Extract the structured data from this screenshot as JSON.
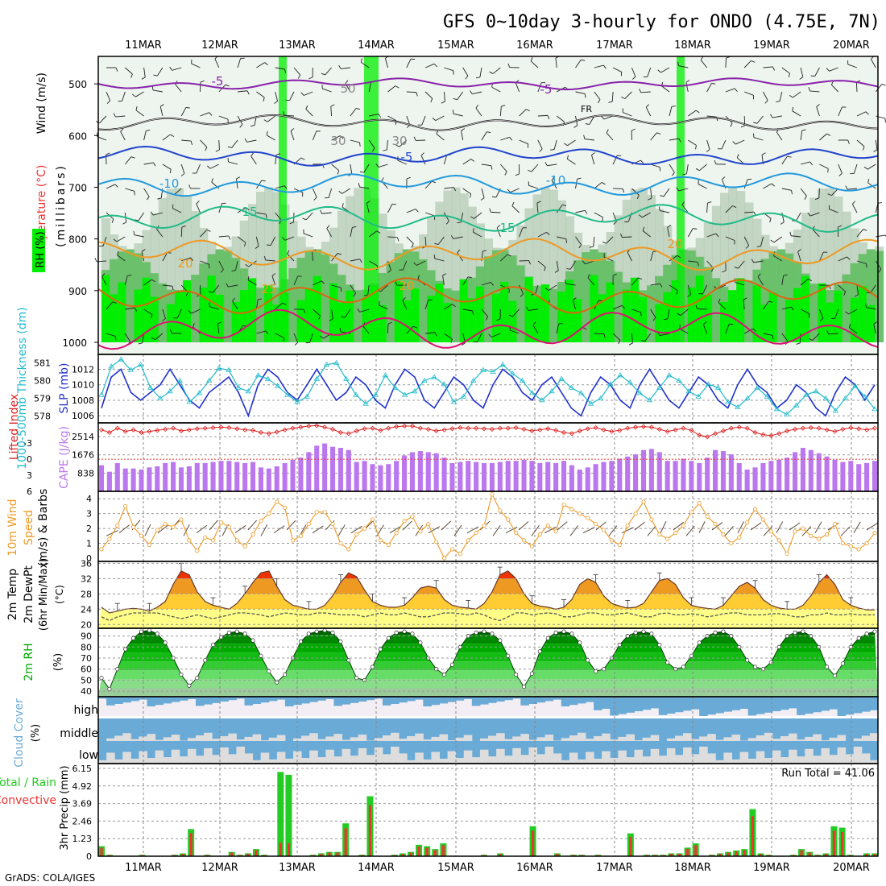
{
  "title": "GFS 0~10day 3-hourly for ONDO (4.75E, 7N)",
  "credit": "GrADS: COLA/IGES",
  "chart_data": {
    "type": "meteogram",
    "dates": [
      "11MAR",
      "12MAR",
      "13MAR",
      "14MAR",
      "15MAR",
      "16MAR",
      "17MAR",
      "18MAR",
      "19MAR",
      "20MAR"
    ],
    "colors": {
      "rh_green": "#00ee00",
      "rh_dark": "#55bb55",
      "cape": "#bb77ee",
      "lifted_index": "#dd2222",
      "slp": "#2233cc",
      "thickness": "#22bbcc",
      "wind10m": "#ee9922",
      "temp_hot": "#ee3300",
      "temp_warm": "#ee9922",
      "temp_mild": "#ffcc33",
      "temp_cool": "#ffff88",
      "dewpt": "#555555",
      "rh2m": "#00aa00",
      "cloud": "#6aaad6",
      "cloud_clear": "#dddddd",
      "precip_total": "#22cc22",
      "precip_conv": "#ee3333"
    },
    "panels": [
      {
        "id": "upper_air",
        "ylabel_lines": [
          "Wind (m/s)",
          "Temperature (°C)",
          "RH (%)"
        ],
        "yunit": "(millibars)",
        "yticks": [
          500,
          600,
          700,
          800,
          900,
          1000
        ],
        "ylim": [
          450,
          1000
        ],
        "contour_labels": [
          "-5",
          "-5",
          "FR",
          "-5",
          "-10",
          "-10",
          "15",
          "15",
          "20",
          "20",
          "25",
          "30",
          "30",
          "50",
          "20"
        ],
        "isotherms": [
          {
            "label": "-5",
            "p": 500,
            "color": "#8822aa"
          },
          {
            "label": "FR",
            "p": 575,
            "color": "#111111"
          },
          {
            "label": "-5",
            "p": 640,
            "color": "#2244cc"
          },
          {
            "label": "-10",
            "p": 695,
            "color": "#2299dd"
          },
          {
            "label": "15",
            "p": 760,
            "color": "#22bb88"
          },
          {
            "label": "20",
            "p": 830,
            "color": "#ee9922"
          },
          {
            "label": "25",
            "p": 910,
            "color": "#dd6611"
          },
          {
            "label": "",
            "p": 975,
            "color": "#dd1177"
          }
        ]
      },
      {
        "id": "slp_thickness",
        "left_label": "1000-500mb Thickness (dm)",
        "right_label": "SLP (mb)",
        "left_ticks": [
          578,
          579,
          580,
          581
        ],
        "right_ticks": [
          1006,
          1008,
          1010,
          1012
        ],
        "slp_series": [
          1007,
          1011,
          1012,
          1009,
          1008,
          1009,
          1010,
          1012,
          1010,
          1008,
          1007,
          1009,
          1010,
          1011,
          1009,
          1006,
          1010,
          1012,
          1011,
          1009,
          1008,
          1010,
          1012,
          1010,
          1008,
          1009,
          1011,
          1010,
          1008,
          1007,
          1010,
          1012,
          1011,
          1008,
          1007,
          1009,
          1011,
          1010,
          1008,
          1007,
          1010,
          1012,
          1011,
          1009,
          1008,
          1010,
          1011,
          1009,
          1007,
          1006,
          1009,
          1011,
          1010,
          1008,
          1007,
          1010,
          1012,
          1010,
          1008,
          1007,
          1009,
          1011,
          1010,
          1008,
          1007,
          1010,
          1012,
          1010,
          1009,
          1007,
          1008,
          1010,
          1009,
          1007,
          1006,
          1009,
          1011,
          1010,
          1008,
          1010
        ],
        "thickness_series": [
          579.2,
          580.8,
          581.2,
          580.6,
          580.9,
          579.6,
          579.0,
          579.4,
          580.0,
          578.8,
          579.3,
          580.0,
          580.7,
          580.6,
          579.6,
          579.4,
          580.3,
          580.1,
          579.7,
          579.2,
          578.8,
          579.1,
          580.1,
          580.9,
          581.0,
          580.1,
          579.2,
          578.7,
          579.2,
          580.3,
          579.6,
          579.2,
          579.4,
          580.0,
          580.2,
          579.8,
          578.8,
          579.1,
          580.0,
          580.6,
          580.5,
          580.9,
          580.4,
          580.0,
          579.3,
          578.9,
          579.4,
          580.1,
          579.6,
          579.3,
          578.7,
          579.0,
          579.8,
          580.3,
          579.9,
          579.3,
          578.9,
          579.6,
          580.3,
          580.0,
          579.4,
          579.1,
          579.8,
          579.6,
          578.8,
          578.5,
          579.0,
          579.6,
          579.1,
          578.4,
          578.1,
          578.6,
          579.2,
          579.4,
          579.0,
          578.3,
          579.0,
          579.7,
          579.1,
          578.4
        ]
      },
      {
        "id": "cape_li",
        "left_label": "Lifted Index",
        "right_label": "CAPE (J/kg)",
        "left_ticks": [
          -3,
          0,
          3,
          6
        ],
        "right_ticks": [
          838,
          1676,
          2514
        ],
        "cape": [
          1200,
          900,
          1300,
          1050,
          1050,
          1000,
          1100,
          1150,
          1300,
          1350,
          1100,
          1150,
          1300,
          1300,
          1350,
          1400,
          1400,
          1350,
          1300,
          1350,
          1100,
          1050,
          1150,
          1300,
          1450,
          1550,
          1800,
          2100,
          2200,
          2050,
          2000,
          1900,
          1350,
          1400,
          1250,
          1200,
          1250,
          1400,
          1650,
          1800,
          1850,
          1800,
          1750,
          1550,
          1300,
          1350,
          1400,
          1350,
          1300,
          1300,
          1350,
          1400,
          1400,
          1450,
          1400,
          1300,
          1350,
          1300,
          1400,
          1200,
          1000,
          1100,
          1250,
          1350,
          1400,
          1500,
          1600,
          1700,
          1900,
          1950,
          1800,
          1400,
          1400,
          1500,
          1400,
          1300,
          1550,
          1900,
          1850,
          1700,
          1300,
          1000,
          1100,
          1300,
          1400,
          1450,
          1550,
          1800,
          2000,
          1900,
          1750,
          1600,
          1450,
          1350,
          1400,
          1250,
          1300,
          1400
        ],
        "lifted_index": [
          -5.5,
          -5.0,
          -5.8,
          -5.2,
          -5.5,
          -5.0,
          -5.2,
          -5.4,
          -5.6,
          -5.8,
          -5.3,
          -5.5,
          -5.7,
          -5.8,
          -5.9,
          -6.0,
          -5.9,
          -5.7,
          -5.5,
          -5.4,
          -5.0,
          -4.8,
          -5.1,
          -5.5,
          -5.8,
          -6.0,
          -6.2,
          -6.3,
          -6.0,
          -5.6,
          -5.0,
          -4.8,
          -5.3,
          -5.7,
          -5.8,
          -5.4,
          -5.8,
          -6.1,
          -6.2,
          -6.2,
          -5.8,
          -5.6,
          -5.3,
          -5.5,
          -5.7,
          -5.9,
          -5.8,
          -5.8,
          -5.7,
          -5.6,
          -5.8,
          -5.8,
          -5.9,
          -5.6,
          -5.3,
          -5.5,
          -5.7,
          -5.4,
          -5.0,
          -4.8,
          -5.3,
          -5.7,
          -5.9,
          -5.5,
          -5.2,
          -5.4,
          -5.8,
          -6.0,
          -6.1,
          -6.0,
          -5.6,
          -5.2,
          -5.5,
          -5.8,
          -5.4,
          -4.5,
          -4.2,
          -4.8,
          -5.3,
          -5.8,
          -6.0,
          -5.8,
          -5.0,
          -4.6,
          -4.4,
          -4.8,
          -5.3,
          -5.6,
          -5.8,
          -5.9,
          -5.8,
          -5.5,
          -5.2,
          -5.6,
          -5.9,
          -5.7,
          -5.5,
          -5.8
        ]
      },
      {
        "id": "wind10m",
        "label_lines": [
          "10m Wind",
          "Speed",
          "(m/s) & Barbs"
        ],
        "yticks": [
          0,
          1,
          2,
          3,
          4
        ],
        "ylim": [
          0,
          4.5
        ],
        "speed": [
          0.6,
          1.3,
          2.2,
          3.5,
          2.1,
          1.5,
          0.9,
          1.9,
          2.3,
          2.1,
          2.6,
          1.2,
          0.5,
          1.4,
          1.2,
          2.4,
          2.1,
          1.2,
          0.8,
          1.6,
          2.5,
          3.0,
          3.8,
          3.4,
          1.2,
          1.5,
          2.3,
          3.1,
          3.1,
          2.3,
          1.0,
          0.6,
          1.6,
          2.0,
          2.6,
          1.2,
          0.9,
          1.7,
          2.5,
          2.8,
          1.8,
          2.3,
          1.1,
          0.0,
          0.6,
          0.3,
          1.2,
          1.7,
          2.2,
          4.3,
          3.2,
          2.6,
          1.7,
          1.2,
          0.8,
          1.6,
          2.2,
          1.8,
          3.6,
          3.3,
          3.0,
          2.7,
          2.3,
          1.9,
          1.2,
          0.9,
          2.2,
          3.0,
          3.8,
          2.6,
          1.6,
          1.3,
          1.7,
          2.2,
          3.1,
          3.7,
          2.8,
          2.3,
          1.6,
          1.0,
          1.4,
          2.4,
          3.3,
          2.6,
          1.8,
          1.2,
          0.3,
          1.8,
          2.0,
          1.5,
          1.3,
          1.6,
          2.3,
          1.0,
          0.8,
          0.6,
          1.0,
          1.7
        ]
      },
      {
        "id": "temp2m",
        "label_lines": [
          "2m Temp",
          "2m DewPt",
          "(6hr Min/Max)"
        ],
        "yunit": "(°C)",
        "yticks": [
          20,
          24,
          28,
          32,
          36
        ],
        "ylim": [
          19,
          36.5
        ],
        "temp": [
          24.5,
          23.0,
          23.5,
          24.0,
          24.2,
          24.0,
          23.5,
          24.5,
          26.0,
          30.5,
          34.0,
          33.0,
          28.5,
          26.0,
          25.0,
          24.5,
          24.0,
          25.5,
          28.0,
          31.0,
          33.5,
          34.0,
          30.0,
          26.5,
          25.0,
          24.5,
          24.0,
          24.0,
          25.0,
          27.5,
          31.0,
          33.5,
          32.5,
          29.0,
          26.0,
          25.0,
          24.5,
          24.5,
          25.0,
          27.0,
          29.5,
          30.0,
          29.5,
          26.5,
          25.0,
          24.5,
          24.3,
          24.0,
          25.5,
          28.5,
          33.0,
          34.0,
          32.0,
          28.0,
          25.5,
          24.8,
          24.5,
          24.0,
          24.5,
          26.5,
          30.5,
          32.0,
          31.0,
          27.5,
          25.5,
          24.8,
          24.3,
          24.5,
          25.5,
          28.5,
          31.5,
          32.0,
          30.5,
          27.0,
          25.0,
          24.5,
          24.2,
          24.0,
          25.0,
          27.5,
          30.0,
          31.0,
          29.5,
          26.5,
          25.0,
          24.3,
          24.0,
          24.0,
          25.0,
          27.5,
          31.0,
          33.0,
          30.5,
          26.5,
          25.0,
          24.3,
          23.8,
          23.8
        ],
        "dewpt": [
          22.0,
          21.0,
          22.0,
          22.5,
          23.0,
          23.0,
          23.0,
          23.0,
          22.5,
          22.0,
          21.5,
          22.0,
          22.5,
          22.0,
          21.5,
          22.0,
          22.5,
          23.0,
          23.0,
          22.8,
          22.5,
          22.0,
          22.5,
          23.0,
          22.8,
          22.5,
          22.5,
          23.0,
          23.0,
          22.8,
          22.5,
          22.5,
          22.5,
          22.0,
          22.5,
          23.0,
          22.5,
          22.5,
          23.0,
          22.5,
          22.0,
          22.0,
          22.5,
          23.0,
          23.0,
          22.8,
          22.5,
          23.0,
          22.5,
          21.5,
          21.0,
          22.0,
          23.0,
          23.0,
          22.5,
          22.8,
          23.0,
          22.8,
          22.0,
          22.0,
          22.5,
          23.0,
          23.0,
          22.5,
          22.5,
          22.8,
          23.0,
          22.5,
          22.0,
          22.0,
          22.8,
          23.0,
          22.5,
          22.5,
          22.8,
          22.5,
          22.0,
          22.3,
          22.8,
          23.0,
          23.0,
          22.5,
          22.5,
          22.5,
          22.8,
          22.8,
          22.5,
          22.0,
          22.0,
          22.5,
          22.5,
          23.0,
          22.5,
          22.5,
          22.8,
          22.5,
          22.5,
          22.5
        ]
      },
      {
        "id": "rh2m",
        "label_lines": [
          "2m RH"
        ],
        "yunit": "(%)",
        "yticks": [
          40,
          50,
          60,
          70,
          80,
          90
        ],
        "ylim": [
          35,
          97
        ],
        "rh": [
          52,
          42,
          60,
          78,
          88,
          94,
          95,
          92,
          84,
          70,
          55,
          45,
          52,
          68,
          82,
          89,
          93,
          94,
          92,
          86,
          72,
          58,
          48,
          55,
          70,
          85,
          92,
          94,
          95,
          93,
          85,
          68,
          52,
          50,
          62,
          78,
          88,
          93,
          94,
          92,
          84,
          70,
          60,
          55,
          64,
          80,
          90,
          93,
          94,
          92,
          86,
          72,
          55,
          44,
          56,
          76,
          88,
          93,
          94,
          92,
          84,
          68,
          58,
          60,
          70,
          82,
          90,
          93,
          94,
          92,
          82,
          66,
          60,
          62,
          72,
          84,
          90,
          93,
          94,
          90,
          80,
          68,
          62,
          60,
          66,
          80,
          90,
          93,
          94,
          90,
          80,
          62,
          54,
          65,
          80,
          88,
          92,
          94
        ]
      },
      {
        "id": "cloud",
        "label_lines": [
          "Cloud Cover"
        ],
        "yunit": "(%)",
        "level_labels": [
          "high",
          "middle",
          "low"
        ]
      },
      {
        "id": "precip",
        "label_lines": [
          "Total / Rain",
          "Convective"
        ],
        "ylabel": "3hr Precip (mm)",
        "yticks": [
          0,
          1.23,
          2.46,
          3.69,
          4.92,
          6.15
        ],
        "ylim": [
          0,
          6.15
        ],
        "run_total_label": "Run Total = 41.06",
        "total": [
          0.7,
          0.1,
          0.0,
          0.0,
          0.0,
          0.1,
          0.0,
          0.0,
          0.0,
          0.1,
          0.2,
          1.9,
          0.0,
          0.1,
          0.0,
          0.0,
          0.3,
          0.1,
          0.2,
          0.5,
          0.1,
          0.0,
          5.9,
          5.7,
          0.0,
          0.0,
          0.1,
          0.2,
          0.3,
          0.3,
          2.3,
          0.0,
          0.1,
          4.2,
          0.0,
          0.0,
          0.1,
          0.2,
          0.3,
          0.8,
          0.7,
          0.5,
          0.9,
          0.0,
          0.0,
          0.0,
          0.0,
          0.1,
          0.0,
          0.2,
          0.0,
          0.0,
          0.0,
          2.1,
          0.0,
          0.0,
          0.2,
          0.0,
          0.1,
          0.1,
          0.0,
          0.1,
          0.0,
          0.0,
          0.0,
          1.6,
          0.0,
          0.1,
          0.1,
          0.1,
          0.2,
          0.2,
          0.6,
          0.9,
          0.0,
          0.1,
          0.2,
          0.3,
          0.4,
          0.5,
          3.3,
          0.2,
          0.1,
          0.0,
          0.0,
          0.1,
          0.5,
          0.3,
          0.1,
          0.2,
          2.1,
          2.0,
          0.1,
          0.0,
          0.2,
          0.2
        ]
      }
    ]
  }
}
